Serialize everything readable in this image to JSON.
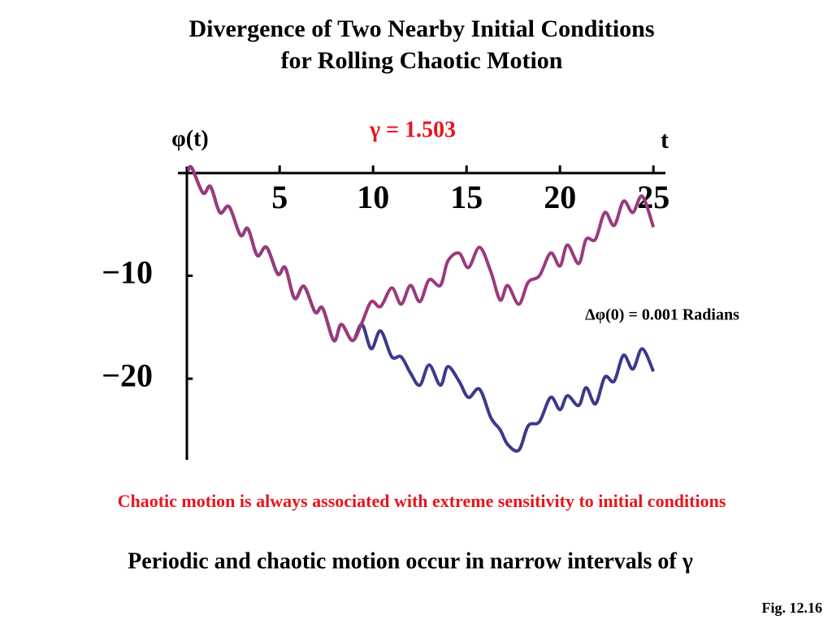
{
  "chart_data": {
    "type": "line",
    "title": "Divergence of Two Nearby Initial Conditions",
    "subtitle": "for Rolling Chaotic Motion",
    "x_label": "t",
    "y_label": "φ(t)",
    "annotations": [
      "γ = 1.503",
      "Δφ(0) = 0.001 Radians",
      "Chaotic motion is always associated with extreme sensitivity to initial conditions",
      "Periodic and chaotic motion occur in narrow intervals of γ",
      "Fig. 12.16"
    ],
    "x": [
      0.1,
      0.3,
      0.9,
      1.3,
      1.8,
      2.3,
      2.9,
      3.3,
      3.8,
      4.3,
      4.9,
      5.3,
      5.8,
      6.3,
      6.9,
      7.3,
      7.9,
      8.3,
      8.9,
      9.4,
      9.9,
      10.4,
      11.0,
      11.5,
      12.0,
      12.5,
      13.0,
      13.6,
      14.0,
      14.6,
      15.1,
      15.7,
      16.3,
      16.8,
      17.2,
      17.8,
      18.3,
      18.9,
      19.5,
      20.0,
      20.4,
      21.0,
      21.4,
      21.9,
      22.4,
      22.9,
      23.4,
      23.9,
      24.4,
      25.0
    ],
    "series": [
      {
        "color": "#9b3a7c",
        "values": [
          0.24,
          0.47,
          -1.97,
          -1.34,
          -3.86,
          -3.31,
          -6.06,
          -5.43,
          -8.03,
          -7.24,
          -9.84,
          -9.21,
          -12.2,
          -11.02,
          -13.54,
          -13.15,
          -16.3,
          -14.72,
          -16.3,
          -14.57,
          -12.52,
          -12.99,
          -11.18,
          -12.76,
          -10.94,
          -12.52,
          -10.39,
          -10.94,
          -8.58,
          -7.8,
          -9.21,
          -7.24,
          -9.61,
          -12.36,
          -10.94,
          -12.76,
          -10.63,
          -10.0,
          -7.8,
          -9.06,
          -7.01,
          -8.82,
          -6.46,
          -6.46,
          -3.86,
          -5.12,
          -2.76,
          -3.86,
          -2.28,
          -5.28
        ]
      },
      {
        "color": "#3a3a8c",
        "values": [
          0.24,
          0.47,
          -1.97,
          -1.34,
          -3.86,
          -3.31,
          -6.06,
          -5.43,
          -8.03,
          -7.24,
          -9.84,
          -9.21,
          -12.2,
          -11.02,
          -13.54,
          -13.15,
          -16.3,
          -14.72,
          -16.3,
          -14.72,
          -17.09,
          -15.35,
          -17.87,
          -17.87,
          -19.45,
          -20.63,
          -18.66,
          -20.63,
          -18.82,
          -20.24,
          -21.81,
          -21.02,
          -23.78,
          -24.96,
          -26.38,
          -26.93,
          -24.57,
          -24.17,
          -21.81,
          -23.0,
          -21.65,
          -22.6,
          -20.87,
          -22.44,
          -19.84,
          -20.24,
          -17.72,
          -19.06,
          -17.09,
          -19.29
        ]
      }
    ],
    "xlim": [
      -0.4,
      25.6
    ],
    "xticks": [
      5,
      10,
      15,
      20,
      25
    ],
    "ylim": [
      -27.8,
      0.6
    ],
    "yticks": [
      {
        "value": -10,
        "label": "−10"
      },
      {
        "value": -20,
        "label": "−20"
      }
    ]
  }
}
